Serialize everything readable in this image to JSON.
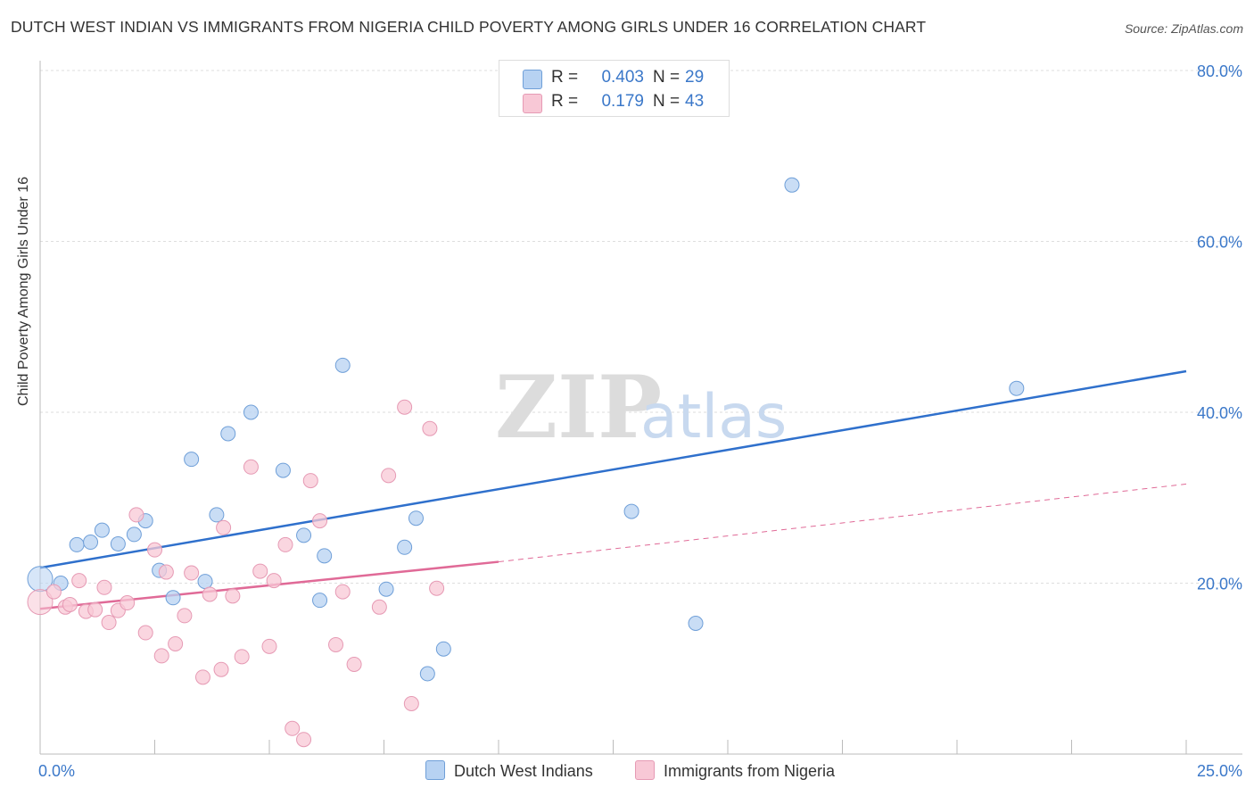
{
  "title": "DUTCH WEST INDIAN VS IMMIGRANTS FROM NIGERIA CHILD POVERTY AMONG GIRLS UNDER 16 CORRELATION CHART",
  "source": "Source: ZipAtlas.com",
  "watermark": {
    "zip": "ZIP",
    "atlas": "atlas"
  },
  "legend_top": [
    {
      "r_label": "R =",
      "r_value": "0.403",
      "n_label": "N =",
      "n_value": "29"
    },
    {
      "r_label": "R =",
      "r_value": "0.179",
      "n_label": "N =",
      "n_value": "43"
    }
  ],
  "chart_data": {
    "type": "scatter",
    "title": "DUTCH WEST INDIAN VS IMMIGRANTS FROM NIGERIA CHILD POVERTY AMONG GIRLS UNDER 16 CORRELATION CHART",
    "xlabel": "",
    "ylabel": "Child Poverty Among Girls Under 16",
    "xlim": [
      0,
      25
    ],
    "ylim": [
      0,
      80
    ],
    "x_tick_labels": [
      "0.0%",
      "25.0%"
    ],
    "y_tick_values": [
      20,
      40,
      60,
      80
    ],
    "y_tick_labels": [
      "20.0%",
      "40.0%",
      "60.0%",
      "80.0%"
    ],
    "grid": true,
    "legend_position": "bottom",
    "colors": {
      "blue_fill": "#b7d2f2",
      "blue_stroke": "#6f9fd8",
      "blue_line": "#2f70cc",
      "pink_fill": "#f8c8d6",
      "pink_stroke": "#e69ab4",
      "pink_line": "#e06a97",
      "axis_label": "#3b78c9"
    },
    "series": [
      {
        "name": "Dutch West Indians",
        "color": "#b7d2f2",
        "r": 0.403,
        "n": 29,
        "trend": {
          "x": [
            0,
            25
          ],
          "y": [
            21.8,
            44.8
          ],
          "style": "solid"
        },
        "points": [
          [
            0.0,
            20.5
          ],
          [
            0.45,
            20.0
          ],
          [
            0.8,
            24.5
          ],
          [
            1.1,
            24.8
          ],
          [
            1.35,
            26.2
          ],
          [
            1.7,
            24.6
          ],
          [
            2.05,
            25.7
          ],
          [
            2.3,
            27.3
          ],
          [
            2.6,
            21.5
          ],
          [
            2.9,
            18.3
          ],
          [
            3.3,
            34.5
          ],
          [
            3.6,
            20.2
          ],
          [
            3.85,
            28.0
          ],
          [
            4.1,
            37.5
          ],
          [
            4.6,
            40.0
          ],
          [
            5.3,
            33.2
          ],
          [
            5.75,
            25.6
          ],
          [
            6.1,
            18.0
          ],
          [
            6.2,
            23.2
          ],
          [
            6.6,
            45.5
          ],
          [
            7.55,
            19.3
          ],
          [
            7.95,
            24.2
          ],
          [
            8.2,
            27.6
          ],
          [
            8.45,
            9.4
          ],
          [
            8.8,
            12.3
          ],
          [
            12.9,
            28.4
          ],
          [
            14.3,
            15.3
          ],
          [
            16.4,
            66.6
          ],
          [
            21.3,
            42.8
          ]
        ]
      },
      {
        "name": "Immigrants from Nigeria",
        "color": "#f8c8d6",
        "r": 0.179,
        "n": 43,
        "trend": {
          "x": [
            0,
            10.0
          ],
          "y": [
            17.0,
            22.5
          ],
          "style": "solid"
        },
        "trend_extension": {
          "x": [
            10.0,
            25
          ],
          "y": [
            22.5,
            31.6
          ],
          "style": "dashed"
        },
        "points": [
          [
            0.0,
            17.8
          ],
          [
            0.3,
            19.0
          ],
          [
            0.55,
            17.2
          ],
          [
            0.65,
            17.5
          ],
          [
            0.85,
            20.3
          ],
          [
            1.0,
            16.7
          ],
          [
            1.2,
            16.9
          ],
          [
            1.4,
            19.5
          ],
          [
            1.5,
            15.4
          ],
          [
            1.7,
            16.8
          ],
          [
            1.9,
            17.7
          ],
          [
            2.1,
            28.0
          ],
          [
            2.3,
            14.2
          ],
          [
            2.5,
            23.9
          ],
          [
            2.65,
            11.5
          ],
          [
            2.75,
            21.3
          ],
          [
            2.95,
            12.9
          ],
          [
            3.15,
            16.2
          ],
          [
            3.3,
            21.2
          ],
          [
            3.55,
            9.0
          ],
          [
            3.7,
            18.7
          ],
          [
            3.95,
            9.9
          ],
          [
            4.0,
            26.5
          ],
          [
            4.2,
            18.5
          ],
          [
            4.4,
            11.4
          ],
          [
            4.6,
            33.6
          ],
          [
            4.8,
            21.4
          ],
          [
            5.0,
            12.6
          ],
          [
            5.1,
            20.3
          ],
          [
            5.35,
            24.5
          ],
          [
            5.5,
            3.0
          ],
          [
            5.75,
            1.7
          ],
          [
            5.9,
            32.0
          ],
          [
            6.1,
            27.3
          ],
          [
            6.45,
            12.8
          ],
          [
            6.6,
            19.0
          ],
          [
            6.85,
            10.5
          ],
          [
            7.4,
            17.2
          ],
          [
            7.6,
            32.6
          ],
          [
            7.95,
            40.6
          ],
          [
            8.1,
            5.9
          ],
          [
            8.5,
            38.1
          ],
          [
            8.65,
            19.4
          ]
        ]
      }
    ]
  }
}
